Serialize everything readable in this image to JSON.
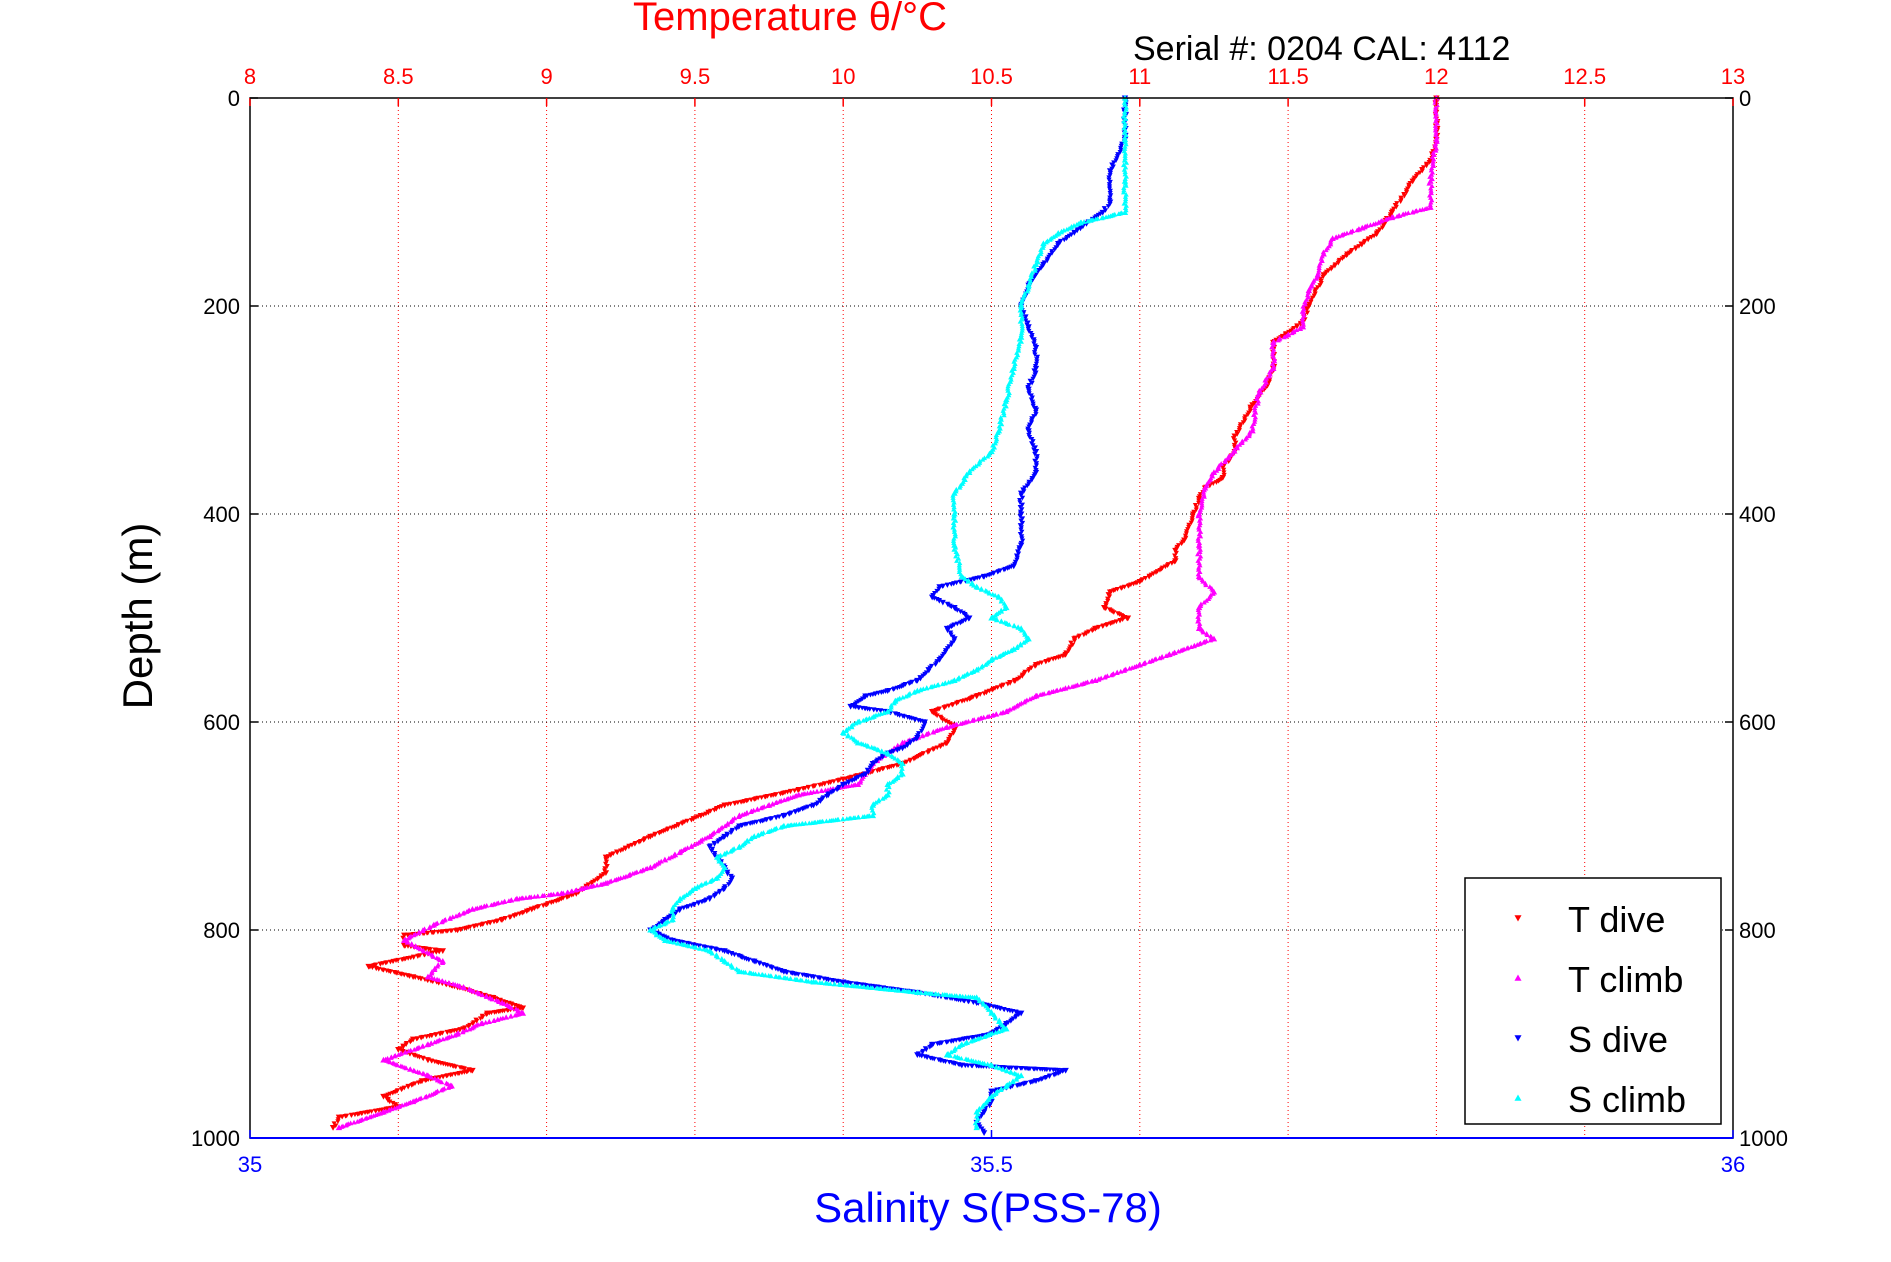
{
  "chart_data": {
    "type": "scatter",
    "title": "Temperature θ/°C",
    "subtitle": "Serial #: 0204  CAL: 4112",
    "ylabel": "Depth (m)",
    "xlabel": "Salinity S(PSS-78)",
    "x_top_label": "Temperature θ/°C",
    "x_top_range": [
      8,
      13
    ],
    "x_top_ticks": [
      "8",
      "8.5",
      "9",
      "9.5",
      "10",
      "10.5",
      "11",
      "11.5",
      "12",
      "12.5",
      "13"
    ],
    "x_bottom_range": [
      35,
      36
    ],
    "x_bottom_ticks": [
      "35",
      "35.5",
      "36"
    ],
    "y_range": [
      0,
      1000
    ],
    "y_reversed": true,
    "y_ticks": [
      "0",
      "200",
      "400",
      "600",
      "800",
      "1000"
    ],
    "grid": true,
    "legend_position": "bottom-right",
    "series": [
      {
        "name": "T dive",
        "axis": "top",
        "color": "#ff0000",
        "marker": "triangle-down",
        "points": [
          [
            12.0,
            0
          ],
          [
            12.0,
            40
          ],
          [
            11.98,
            60
          ],
          [
            11.92,
            80
          ],
          [
            11.85,
            110
          ],
          [
            11.8,
            130
          ],
          [
            11.7,
            150
          ],
          [
            11.62,
            170
          ],
          [
            11.57,
            200
          ],
          [
            11.55,
            215
          ],
          [
            11.45,
            235
          ],
          [
            11.45,
            260
          ],
          [
            11.43,
            275
          ],
          [
            11.38,
            295
          ],
          [
            11.32,
            325
          ],
          [
            11.32,
            340
          ],
          [
            11.28,
            355
          ],
          [
            11.28,
            365
          ],
          [
            11.22,
            375
          ],
          [
            11.2,
            385
          ],
          [
            11.18,
            400
          ],
          [
            11.15,
            425
          ],
          [
            11.12,
            435
          ],
          [
            11.12,
            445
          ],
          [
            11.0,
            465
          ],
          [
            10.9,
            475
          ],
          [
            10.88,
            490
          ],
          [
            10.96,
            500
          ],
          [
            10.85,
            510
          ],
          [
            10.78,
            520
          ],
          [
            10.75,
            535
          ],
          [
            10.65,
            545
          ],
          [
            10.58,
            560
          ],
          [
            10.45,
            575
          ],
          [
            10.3,
            590
          ],
          [
            10.38,
            605
          ],
          [
            10.35,
            620
          ],
          [
            10.2,
            640
          ],
          [
            10.0,
            655
          ],
          [
            9.85,
            665
          ],
          [
            9.6,
            680
          ],
          [
            9.52,
            690
          ],
          [
            9.35,
            710
          ],
          [
            9.2,
            730
          ],
          [
            9.2,
            745
          ],
          [
            9.1,
            765
          ],
          [
            8.95,
            780
          ],
          [
            8.85,
            790
          ],
          [
            8.7,
            800
          ],
          [
            8.52,
            805
          ],
          [
            8.52,
            815
          ],
          [
            8.65,
            820
          ],
          [
            8.4,
            835
          ],
          [
            8.55,
            845
          ],
          [
            8.7,
            855
          ],
          [
            8.82,
            865
          ],
          [
            8.92,
            875
          ],
          [
            8.8,
            880
          ],
          [
            8.72,
            895
          ],
          [
            8.55,
            905
          ],
          [
            8.5,
            915
          ],
          [
            8.6,
            925
          ],
          [
            8.75,
            935
          ],
          [
            8.58,
            945
          ],
          [
            8.45,
            960
          ],
          [
            8.5,
            970
          ],
          [
            8.3,
            980
          ],
          [
            8.28,
            990
          ]
        ]
      },
      {
        "name": "T climb",
        "axis": "top",
        "color": "#ff00ff",
        "marker": "triangle-up",
        "points": [
          [
            12.0,
            0
          ],
          [
            12.0,
            40
          ],
          [
            11.98,
            80
          ],
          [
            11.98,
            105
          ],
          [
            11.85,
            115
          ],
          [
            11.75,
            125
          ],
          [
            11.65,
            135
          ],
          [
            11.62,
            150
          ],
          [
            11.6,
            170
          ],
          [
            11.57,
            185
          ],
          [
            11.55,
            205
          ],
          [
            11.55,
            220
          ],
          [
            11.45,
            235
          ],
          [
            11.45,
            260
          ],
          [
            11.4,
            285
          ],
          [
            11.38,
            320
          ],
          [
            11.3,
            345
          ],
          [
            11.25,
            360
          ],
          [
            11.22,
            375
          ],
          [
            11.2,
            400
          ],
          [
            11.2,
            430
          ],
          [
            11.2,
            460
          ],
          [
            11.25,
            475
          ],
          [
            11.2,
            490
          ],
          [
            11.2,
            510
          ],
          [
            11.25,
            520
          ],
          [
            11.1,
            535
          ],
          [
            11.0,
            545
          ],
          [
            10.85,
            560
          ],
          [
            10.65,
            575
          ],
          [
            10.55,
            590
          ],
          [
            10.35,
            605
          ],
          [
            10.2,
            620
          ],
          [
            10.1,
            640
          ],
          [
            10.05,
            660
          ],
          [
            9.85,
            670
          ],
          [
            9.75,
            680
          ],
          [
            9.65,
            690
          ],
          [
            9.55,
            710
          ],
          [
            9.45,
            725
          ],
          [
            9.35,
            740
          ],
          [
            9.2,
            755
          ],
          [
            9.05,
            765
          ],
          [
            8.9,
            770
          ],
          [
            8.75,
            780
          ],
          [
            8.62,
            795
          ],
          [
            8.52,
            810
          ],
          [
            8.65,
            830
          ],
          [
            8.6,
            845
          ],
          [
            8.72,
            855
          ],
          [
            8.85,
            870
          ],
          [
            8.92,
            880
          ],
          [
            8.78,
            890
          ],
          [
            8.7,
            900
          ],
          [
            8.6,
            910
          ],
          [
            8.45,
            925
          ],
          [
            8.6,
            940
          ],
          [
            8.68,
            950
          ],
          [
            8.55,
            965
          ],
          [
            8.45,
            975
          ],
          [
            8.3,
            990
          ]
        ]
      },
      {
        "name": "S dive",
        "axis": "bottom",
        "color": "#0000ff",
        "marker": "triangle-down",
        "points": [
          [
            35.59,
            0
          ],
          [
            35.59,
            40
          ],
          [
            35.58,
            70
          ],
          [
            35.58,
            100
          ],
          [
            35.575,
            110
          ],
          [
            35.56,
            125
          ],
          [
            35.545,
            140
          ],
          [
            35.535,
            160
          ],
          [
            35.525,
            180
          ],
          [
            35.52,
            200
          ],
          [
            35.525,
            220
          ],
          [
            35.53,
            240
          ],
          [
            35.53,
            260
          ],
          [
            35.525,
            280
          ],
          [
            35.53,
            300
          ],
          [
            35.525,
            320
          ],
          [
            35.53,
            340
          ],
          [
            35.53,
            360
          ],
          [
            35.52,
            380
          ],
          [
            35.52,
            400
          ],
          [
            35.52,
            430
          ],
          [
            35.515,
            450
          ],
          [
            35.495,
            460
          ],
          [
            35.465,
            470
          ],
          [
            35.46,
            480
          ],
          [
            35.475,
            490
          ],
          [
            35.485,
            500
          ],
          [
            35.47,
            510
          ],
          [
            35.475,
            520
          ],
          [
            35.465,
            540
          ],
          [
            35.45,
            560
          ],
          [
            35.43,
            570
          ],
          [
            35.415,
            575
          ],
          [
            35.405,
            585
          ],
          [
            35.43,
            590
          ],
          [
            35.455,
            600
          ],
          [
            35.45,
            615
          ],
          [
            35.44,
            625
          ],
          [
            35.43,
            630
          ],
          [
            35.42,
            640
          ],
          [
            35.415,
            650
          ],
          [
            35.4,
            660
          ],
          [
            35.39,
            670
          ],
          [
            35.38,
            680
          ],
          [
            35.36,
            690
          ],
          [
            35.33,
            700
          ],
          [
            35.32,
            710
          ],
          [
            35.31,
            720
          ],
          [
            35.315,
            730
          ],
          [
            35.32,
            740
          ],
          [
            35.325,
            750
          ],
          [
            35.32,
            760
          ],
          [
            35.31,
            770
          ],
          [
            35.29,
            780
          ],
          [
            35.28,
            790
          ],
          [
            35.27,
            800
          ],
          [
            35.285,
            810
          ],
          [
            35.32,
            820
          ],
          [
            35.34,
            830
          ],
          [
            35.36,
            840
          ],
          [
            35.4,
            850
          ],
          [
            35.45,
            860
          ],
          [
            35.49,
            870
          ],
          [
            35.52,
            880
          ],
          [
            35.51,
            890
          ],
          [
            35.5,
            900
          ],
          [
            35.46,
            910
          ],
          [
            35.45,
            920
          ],
          [
            35.48,
            930
          ],
          [
            35.55,
            935
          ],
          [
            35.53,
            945
          ],
          [
            35.5,
            955
          ],
          [
            35.5,
            965
          ],
          [
            35.495,
            975
          ],
          [
            35.49,
            985
          ],
          [
            35.495,
            995
          ]
        ]
      },
      {
        "name": "S climb",
        "axis": "bottom",
        "color": "#00ffff",
        "marker": "triangle-up",
        "points": [
          [
            35.59,
            0
          ],
          [
            35.59,
            40
          ],
          [
            35.59,
            80
          ],
          [
            35.59,
            110
          ],
          [
            35.56,
            120
          ],
          [
            35.545,
            130
          ],
          [
            35.535,
            140
          ],
          [
            35.53,
            160
          ],
          [
            35.525,
            180
          ],
          [
            35.52,
            200
          ],
          [
            35.52,
            230
          ],
          [
            35.515,
            260
          ],
          [
            35.51,
            290
          ],
          [
            35.505,
            320
          ],
          [
            35.5,
            340
          ],
          [
            35.485,
            360
          ],
          [
            35.475,
            380
          ],
          [
            35.475,
            400
          ],
          [
            35.475,
            430
          ],
          [
            35.48,
            460
          ],
          [
            35.49,
            470
          ],
          [
            35.505,
            480
          ],
          [
            35.51,
            490
          ],
          [
            35.5,
            500
          ],
          [
            35.52,
            510
          ],
          [
            35.525,
            520
          ],
          [
            35.515,
            530
          ],
          [
            35.5,
            540
          ],
          [
            35.49,
            550
          ],
          [
            35.475,
            560
          ],
          [
            35.45,
            570
          ],
          [
            35.435,
            580
          ],
          [
            35.43,
            590
          ],
          [
            35.41,
            600
          ],
          [
            35.4,
            610
          ],
          [
            35.41,
            620
          ],
          [
            35.43,
            630
          ],
          [
            35.44,
            640
          ],
          [
            35.44,
            650
          ],
          [
            35.43,
            660
          ],
          [
            35.43,
            670
          ],
          [
            35.42,
            680
          ],
          [
            35.42,
            690
          ],
          [
            35.36,
            700
          ],
          [
            35.34,
            710
          ],
          [
            35.33,
            720
          ],
          [
            35.315,
            730
          ],
          [
            35.32,
            740
          ],
          [
            35.315,
            750
          ],
          [
            35.3,
            760
          ],
          [
            35.29,
            770
          ],
          [
            35.285,
            780
          ],
          [
            35.285,
            790
          ],
          [
            35.27,
            800
          ],
          [
            35.28,
            810
          ],
          [
            35.31,
            820
          ],
          [
            35.32,
            830
          ],
          [
            35.33,
            840
          ],
          [
            35.38,
            850
          ],
          [
            35.45,
            860
          ],
          [
            35.49,
            865
          ],
          [
            35.5,
            880
          ],
          [
            35.51,
            895
          ],
          [
            35.48,
            910
          ],
          [
            35.47,
            920
          ],
          [
            35.5,
            930
          ],
          [
            35.52,
            940
          ],
          [
            35.51,
            950
          ],
          [
            35.5,
            960
          ],
          [
            35.49,
            975
          ],
          [
            35.49,
            990
          ]
        ]
      }
    ]
  }
}
